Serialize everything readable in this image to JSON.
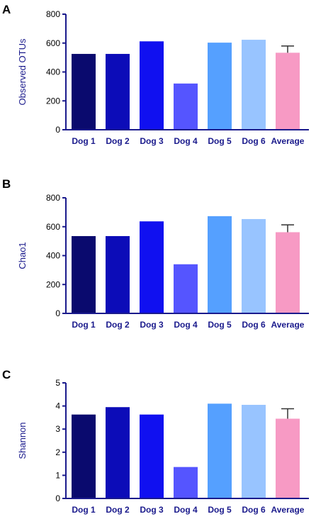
{
  "panels": [
    {
      "letter": "A"
    },
    {
      "letter": "B"
    },
    {
      "letter": "C"
    }
  ],
  "colors": {
    "axis": "#1a1a8c",
    "bars": [
      "#0a0a6e",
      "#0c0cb8",
      "#1010f0",
      "#5555ff",
      "#55a0ff",
      "#98c4ff",
      "#f79ac4"
    ],
    "error_bar": "#333333"
  },
  "chart_data": [
    {
      "type": "bar",
      "title": "",
      "ylabel": "Observed OTUs",
      "xlabel": "",
      "categories": [
        "Dog 1",
        "Dog 2",
        "Dog 3",
        "Dog 4",
        "Dog 5",
        "Dog 6",
        "Average"
      ],
      "values": [
        525,
        525,
        612,
        320,
        603,
        623,
        533
      ],
      "error": {
        "category": "Average",
        "upper": 580
      },
      "ylim": [
        0,
        800
      ],
      "yticks": [
        "0",
        "200",
        "400",
        "600",
        "800"
      ],
      "grid": false,
      "legend": "none"
    },
    {
      "type": "bar",
      "title": "",
      "ylabel": "Chao1",
      "xlabel": "",
      "categories": [
        "Dog 1",
        "Dog 2",
        "Dog 3",
        "Dog 4",
        "Dog 5",
        "Dog 6",
        "Average"
      ],
      "values": [
        535,
        535,
        637,
        340,
        673,
        653,
        562
      ],
      "error": {
        "category": "Average",
        "upper": 613
      },
      "ylim": [
        0,
        800
      ],
      "yticks": [
        "0",
        "200",
        "400",
        "600",
        "800"
      ],
      "grid": false,
      "legend": "none"
    },
    {
      "type": "bar",
      "title": "",
      "ylabel": "Shannon",
      "xlabel": "",
      "categories": [
        "Dog 1",
        "Dog 2",
        "Dog 3",
        "Dog 4",
        "Dog 5",
        "Dog 6",
        "Average"
      ],
      "values": [
        3.63,
        3.95,
        3.63,
        1.36,
        4.1,
        4.05,
        3.45
      ],
      "error": {
        "category": "Average",
        "upper": 3.88
      },
      "ylim": [
        0,
        5
      ],
      "yticks": [
        "0",
        "1",
        "2",
        "3",
        "4",
        "5"
      ],
      "grid": false,
      "legend": "none"
    }
  ]
}
